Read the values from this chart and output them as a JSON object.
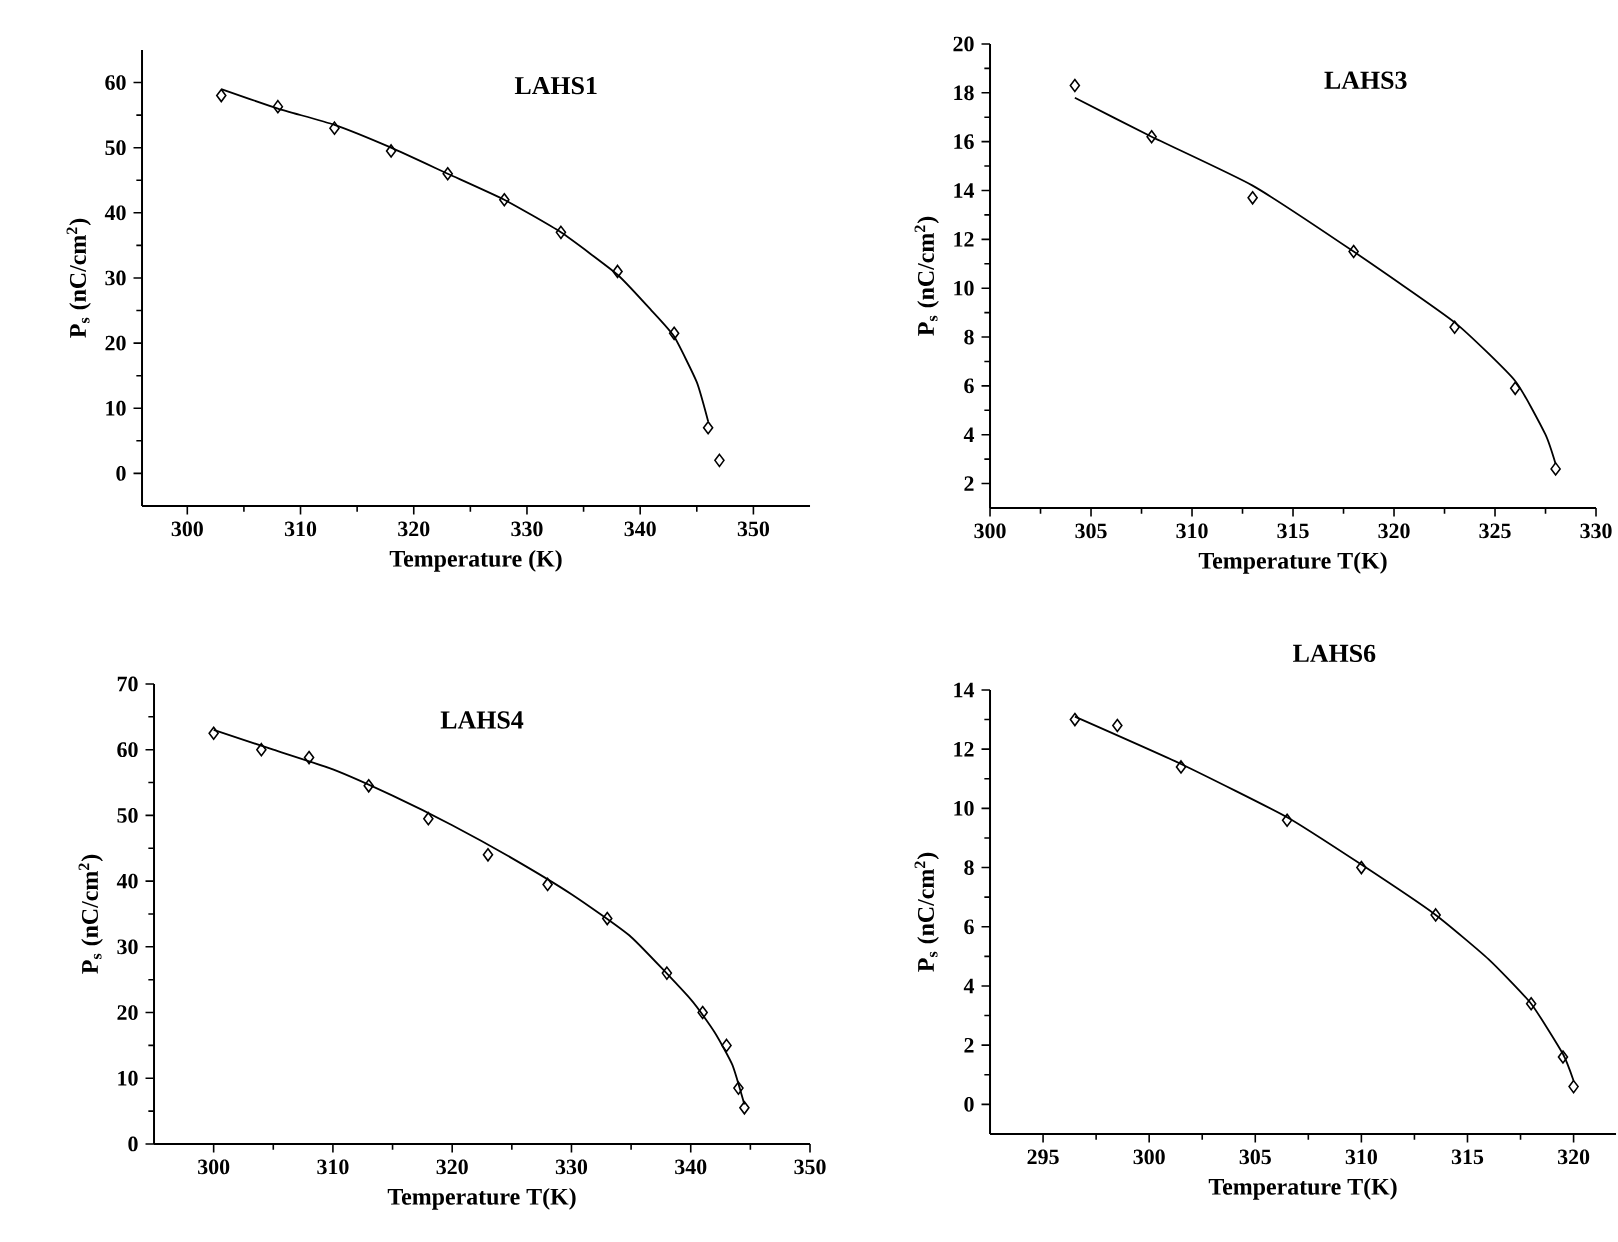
{
  "chart_data": [
    {
      "type": "scatter",
      "title": "LAHS1",
      "xlabel": "Temperature (K)",
      "ylabel": "P$_{s}$ (nC/cm$^{2}$)",
      "xlim": [
        296,
        355
      ],
      "ylim": [
        -5,
        65
      ],
      "xticks": [
        300,
        310,
        320,
        330,
        340,
        350
      ],
      "yticks": [
        0,
        10,
        20,
        30,
        40,
        50,
        60
      ],
      "grid": false,
      "x": [
        303,
        308,
        313,
        318,
        323,
        328,
        333,
        338,
        343,
        346,
        347
      ],
      "series": [
        {
          "marker": "diamond",
          "color": "#000000",
          "values": [
            58,
            56.3,
            53,
            49.5,
            46,
            42,
            37,
            31,
            21.5,
            7,
            2
          ]
        },
        {
          "type": "line",
          "color": "#000000",
          "x": [
            303,
            308,
            313,
            318,
            323,
            328,
            333,
            338,
            341,
            343,
            345,
            346
          ],
          "values": [
            59,
            56,
            53.5,
            50,
            46,
            42,
            37,
            30.5,
            25,
            21,
            14,
            8
          ]
        }
      ]
    },
    {
      "type": "scatter",
      "title": "LAHS3",
      "xlabel": "Temperature T(K)",
      "ylabel": "P$_{s}$ (nC/cm$^{2}$)",
      "xlim": [
        300,
        330
      ],
      "ylim": [
        1,
        20
      ],
      "xticks": [
        300,
        305,
        310,
        315,
        320,
        325,
        330
      ],
      "yticks": [
        2,
        4,
        6,
        8,
        10,
        12,
        14,
        16,
        18,
        20
      ],
      "grid": false,
      "x": [
        304.2,
        308,
        313,
        318,
        323,
        326,
        328
      ],
      "series": [
        {
          "marker": "diamond",
          "color": "#000000",
          "values": [
            18.3,
            16.2,
            13.7,
            11.5,
            8.4,
            5.9,
            2.6
          ]
        },
        {
          "type": "line",
          "color": "#000000",
          "x": [
            304.2,
            308,
            313,
            318,
            323,
            326,
            327.5,
            328
          ],
          "values": [
            17.8,
            16.2,
            14.2,
            11.5,
            8.6,
            6.2,
            4,
            2.8
          ]
        }
      ]
    },
    {
      "type": "scatter",
      "title": "LAHS4",
      "xlabel": "Temperature T(K)",
      "ylabel": "P$_{s}$ (nC/cm$^{2}$)",
      "xlim": [
        295,
        350
      ],
      "ylim": [
        0,
        70
      ],
      "xticks": [
        300,
        310,
        320,
        330,
        340,
        350
      ],
      "yticks": [
        0,
        10,
        20,
        30,
        40,
        50,
        60,
        70
      ],
      "grid": false,
      "x": [
        300,
        304,
        308,
        313,
        318,
        323,
        328,
        333,
        338,
        341,
        343,
        344,
        344.5
      ],
      "series": [
        {
          "marker": "diamond",
          "color": "#000000",
          "values": [
            62.5,
            60,
            58.8,
            54.5,
            49.5,
            44,
            39.5,
            34.3,
            26,
            20,
            15,
            8.5,
            5.5
          ]
        },
        {
          "type": "line",
          "color": "#000000",
          "x": [
            300,
            305,
            310,
            315,
            320,
            325,
            330,
            335,
            340,
            342,
            343.5,
            344.5
          ],
          "values": [
            63,
            60,
            57,
            53,
            48.5,
            43.5,
            38,
            31.5,
            22,
            17,
            12,
            6
          ]
        }
      ]
    },
    {
      "type": "scatter",
      "title": "LAHS6",
      "xlabel": "Temperature T(K)",
      "ylabel": "P$_{s}$ (nC/cm$^{2}$)",
      "xlim": [
        292.5,
        322
      ],
      "ylim": [
        -1,
        14
      ],
      "xticks": [
        295,
        300,
        305,
        310,
        315,
        320
      ],
      "yticks": [
        0,
        2,
        4,
        6,
        8,
        10,
        12,
        14
      ],
      "grid": false,
      "x": [
        296.5,
        298.5,
        301.5,
        306.5,
        310,
        313.5,
        318,
        319.5,
        320
      ],
      "series": [
        {
          "marker": "diamond",
          "color": "#000000",
          "values": [
            13,
            12.8,
            11.4,
            9.6,
            8,
            6.4,
            3.4,
            1.6,
            0.6
          ]
        },
        {
          "type": "line",
          "color": "#000000",
          "x": [
            296.5,
            301.5,
            306.5,
            310,
            313.5,
            316,
            318,
            319.5,
            320
          ],
          "values": [
            13.1,
            11.5,
            9.7,
            8.1,
            6.4,
            4.9,
            3.4,
            1.7,
            0.8
          ]
        }
      ]
    }
  ]
}
